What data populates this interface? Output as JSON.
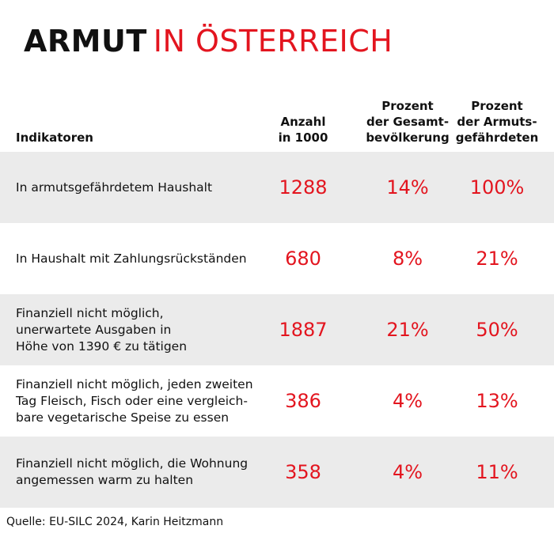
{
  "title": {
    "bold": "ARMUT",
    "rest": "IN ÖSTERREICH"
  },
  "table": {
    "header": [
      [
        "Indikatoren"
      ],
      [
        "Anzahl",
        "in 1000"
      ],
      [
        "Prozent",
        "der Gesamt-",
        "bevölkerung"
      ],
      [
        "Prozent",
        "der Armuts-",
        "gefährdeten"
      ]
    ],
    "rows": [
      [
        [
          "In armutsgefährdetem Haushalt"
        ],
        "1288",
        "14%",
        "100%"
      ],
      [
        [
          "In Haushalt mit Zahlungsrückständen"
        ],
        "680",
        "8%",
        "21%"
      ],
      [
        [
          "Finanziell nicht möglich,",
          "unerwartete Ausgaben in",
          "Höhe von 1390 € zu tätigen"
        ],
        "1887",
        "21%",
        "50%"
      ],
      [
        [
          "Finanziell nicht möglich, jeden zweiten",
          "Tag Fleisch, Fisch oder eine vergleich-",
          "bare vegetarische Speise zu essen"
        ],
        "386",
        "4%",
        "13%"
      ],
      [
        [
          "Finanziell nicht möglich, die Wohnung",
          "angemessen warm zu halten"
        ],
        "358",
        "4%",
        "11%"
      ]
    ]
  },
  "source": "Quelle: EU-SILC 2024, Karin Heitzmann"
}
